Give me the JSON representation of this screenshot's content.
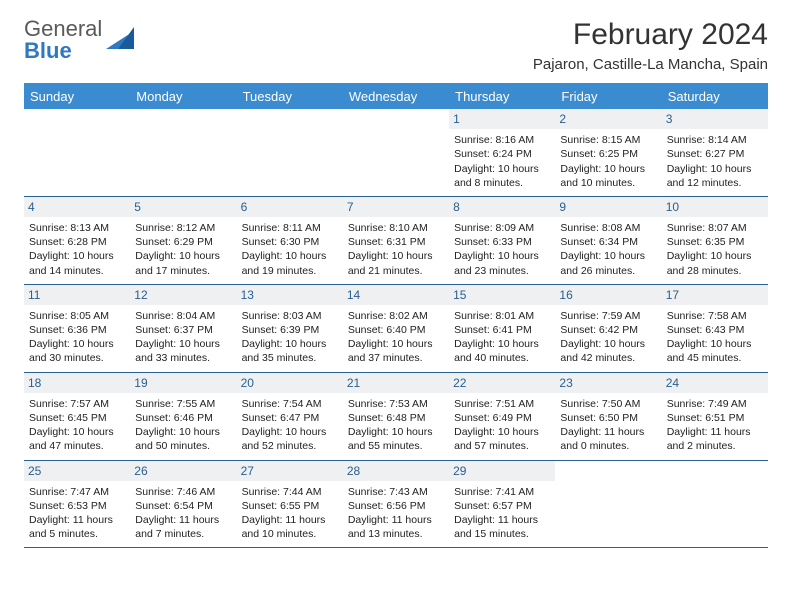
{
  "logo": {
    "general": "General",
    "blue": "Blue"
  },
  "title": "February 2024",
  "location": "Pajaron, Castille-La Mancha, Spain",
  "colors": {
    "header_bg": "#3b8bd0",
    "header_text": "#ffffff",
    "daynum_bg": "#eef0f2",
    "daynum_text": "#2a5f8f",
    "border": "#2a5f8f",
    "logo_gray": "#5a5a5a",
    "logo_blue": "#2f79c2",
    "page_bg": "#ffffff"
  },
  "day_names": [
    "Sunday",
    "Monday",
    "Tuesday",
    "Wednesday",
    "Thursday",
    "Friday",
    "Saturday"
  ],
  "weeks": [
    [
      null,
      null,
      null,
      null,
      {
        "d": "1",
        "sr": "Sunrise: 8:16 AM",
        "ss": "Sunset: 6:24 PM",
        "dl": "Daylight: 10 hours and 8 minutes."
      },
      {
        "d": "2",
        "sr": "Sunrise: 8:15 AM",
        "ss": "Sunset: 6:25 PM",
        "dl": "Daylight: 10 hours and 10 minutes."
      },
      {
        "d": "3",
        "sr": "Sunrise: 8:14 AM",
        "ss": "Sunset: 6:27 PM",
        "dl": "Daylight: 10 hours and 12 minutes."
      }
    ],
    [
      {
        "d": "4",
        "sr": "Sunrise: 8:13 AM",
        "ss": "Sunset: 6:28 PM",
        "dl": "Daylight: 10 hours and 14 minutes."
      },
      {
        "d": "5",
        "sr": "Sunrise: 8:12 AM",
        "ss": "Sunset: 6:29 PM",
        "dl": "Daylight: 10 hours and 17 minutes."
      },
      {
        "d": "6",
        "sr": "Sunrise: 8:11 AM",
        "ss": "Sunset: 6:30 PM",
        "dl": "Daylight: 10 hours and 19 minutes."
      },
      {
        "d": "7",
        "sr": "Sunrise: 8:10 AM",
        "ss": "Sunset: 6:31 PM",
        "dl": "Daylight: 10 hours and 21 minutes."
      },
      {
        "d": "8",
        "sr": "Sunrise: 8:09 AM",
        "ss": "Sunset: 6:33 PM",
        "dl": "Daylight: 10 hours and 23 minutes."
      },
      {
        "d": "9",
        "sr": "Sunrise: 8:08 AM",
        "ss": "Sunset: 6:34 PM",
        "dl": "Daylight: 10 hours and 26 minutes."
      },
      {
        "d": "10",
        "sr": "Sunrise: 8:07 AM",
        "ss": "Sunset: 6:35 PM",
        "dl": "Daylight: 10 hours and 28 minutes."
      }
    ],
    [
      {
        "d": "11",
        "sr": "Sunrise: 8:05 AM",
        "ss": "Sunset: 6:36 PM",
        "dl": "Daylight: 10 hours and 30 minutes."
      },
      {
        "d": "12",
        "sr": "Sunrise: 8:04 AM",
        "ss": "Sunset: 6:37 PM",
        "dl": "Daylight: 10 hours and 33 minutes."
      },
      {
        "d": "13",
        "sr": "Sunrise: 8:03 AM",
        "ss": "Sunset: 6:39 PM",
        "dl": "Daylight: 10 hours and 35 minutes."
      },
      {
        "d": "14",
        "sr": "Sunrise: 8:02 AM",
        "ss": "Sunset: 6:40 PM",
        "dl": "Daylight: 10 hours and 37 minutes."
      },
      {
        "d": "15",
        "sr": "Sunrise: 8:01 AM",
        "ss": "Sunset: 6:41 PM",
        "dl": "Daylight: 10 hours and 40 minutes."
      },
      {
        "d": "16",
        "sr": "Sunrise: 7:59 AM",
        "ss": "Sunset: 6:42 PM",
        "dl": "Daylight: 10 hours and 42 minutes."
      },
      {
        "d": "17",
        "sr": "Sunrise: 7:58 AM",
        "ss": "Sunset: 6:43 PM",
        "dl": "Daylight: 10 hours and 45 minutes."
      }
    ],
    [
      {
        "d": "18",
        "sr": "Sunrise: 7:57 AM",
        "ss": "Sunset: 6:45 PM",
        "dl": "Daylight: 10 hours and 47 minutes."
      },
      {
        "d": "19",
        "sr": "Sunrise: 7:55 AM",
        "ss": "Sunset: 6:46 PM",
        "dl": "Daylight: 10 hours and 50 minutes."
      },
      {
        "d": "20",
        "sr": "Sunrise: 7:54 AM",
        "ss": "Sunset: 6:47 PM",
        "dl": "Daylight: 10 hours and 52 minutes."
      },
      {
        "d": "21",
        "sr": "Sunrise: 7:53 AM",
        "ss": "Sunset: 6:48 PM",
        "dl": "Daylight: 10 hours and 55 minutes."
      },
      {
        "d": "22",
        "sr": "Sunrise: 7:51 AM",
        "ss": "Sunset: 6:49 PM",
        "dl": "Daylight: 10 hours and 57 minutes."
      },
      {
        "d": "23",
        "sr": "Sunrise: 7:50 AM",
        "ss": "Sunset: 6:50 PM",
        "dl": "Daylight: 11 hours and 0 minutes."
      },
      {
        "d": "24",
        "sr": "Sunrise: 7:49 AM",
        "ss": "Sunset: 6:51 PM",
        "dl": "Daylight: 11 hours and 2 minutes."
      }
    ],
    [
      {
        "d": "25",
        "sr": "Sunrise: 7:47 AM",
        "ss": "Sunset: 6:53 PM",
        "dl": "Daylight: 11 hours and 5 minutes."
      },
      {
        "d": "26",
        "sr": "Sunrise: 7:46 AM",
        "ss": "Sunset: 6:54 PM",
        "dl": "Daylight: 11 hours and 7 minutes."
      },
      {
        "d": "27",
        "sr": "Sunrise: 7:44 AM",
        "ss": "Sunset: 6:55 PM",
        "dl": "Daylight: 11 hours and 10 minutes."
      },
      {
        "d": "28",
        "sr": "Sunrise: 7:43 AM",
        "ss": "Sunset: 6:56 PM",
        "dl": "Daylight: 11 hours and 13 minutes."
      },
      {
        "d": "29",
        "sr": "Sunrise: 7:41 AM",
        "ss": "Sunset: 6:57 PM",
        "dl": "Daylight: 11 hours and 15 minutes."
      },
      null,
      null
    ]
  ]
}
